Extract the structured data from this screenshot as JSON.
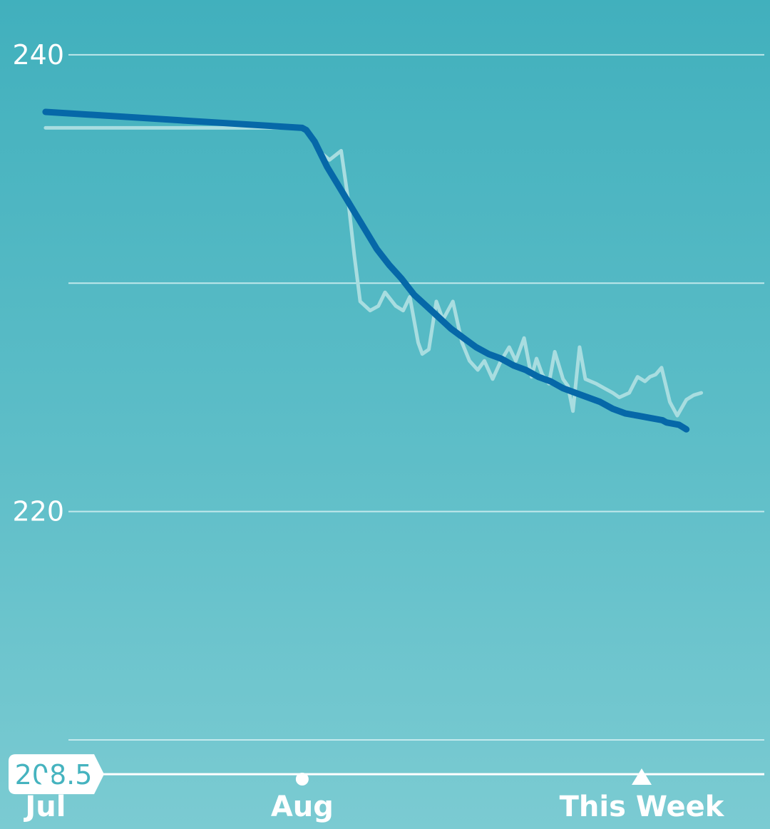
{
  "chart_data": {
    "type": "line",
    "ylim": [
      206.1,
      242.4
    ],
    "yticks": [
      {
        "value": 240,
        "label": "240"
      },
      {
        "value": 230,
        "label": ""
      },
      {
        "value": 220,
        "label": "220"
      },
      {
        "value": 210,
        "label": ""
      }
    ],
    "goal": {
      "value": 208.5,
      "label": "208.5"
    },
    "x_labels": [
      {
        "label": "Jul",
        "day": 0,
        "marker": "dot"
      },
      {
        "label": "Aug",
        "day": 31,
        "marker": "dot"
      },
      {
        "label": "This Week",
        "day": 72,
        "marker": "triangle"
      }
    ],
    "x_range": [
      -5.5,
      87.5
    ],
    "grid": true,
    "colors": {
      "trend": "#0668a8",
      "raw": "#a8dde0",
      "grid": "#d4f0f2",
      "goal_line": "#ffffff",
      "label_text": "#ffffff",
      "goal_badge_bg": "#ffffff",
      "goal_badge_text": "#45b3bf"
    },
    "series": [
      {
        "role": "raw",
        "x": [
          0,
          31,
          31.5,
          33,
          34.3,
          35.7,
          36.5,
          37.3,
          38,
          39.2,
          40.2,
          41,
          42.3,
          43.2,
          44,
          45,
          45.5,
          46.3,
          47.2,
          48,
          49.2,
          50.3,
          51.2,
          52.2,
          53,
          54,
          55,
          56,
          56.8,
          57.8,
          58.7,
          59.3,
          60,
          60.8,
          61.5,
          62.5,
          63.1,
          63.7,
          64.5,
          65.2,
          66.5,
          67.5,
          68.5,
          69.3,
          70.5,
          71.5,
          72.4,
          73,
          73.7,
          74.4,
          75.4,
          76.3,
          77.4,
          78.3,
          79.2
        ],
        "y": [
          236.8,
          236.8,
          236.7,
          235.8,
          235.4,
          235.8,
          233.8,
          231.2,
          229.2,
          228.8,
          229.0,
          229.6,
          229.0,
          228.8,
          229.4,
          227.4,
          226.9,
          227.1,
          229.2,
          228.4,
          229.2,
          227.4,
          226.6,
          226.2,
          226.6,
          225.8,
          226.6,
          227.2,
          226.6,
          227.6,
          225.9,
          226.7,
          226.0,
          225.6,
          227.0,
          225.8,
          225.5,
          224.4,
          227.2,
          225.8,
          225.6,
          225.4,
          225.2,
          225.0,
          225.2,
          225.9,
          225.7,
          225.9,
          226.0,
          226.3,
          224.8,
          224.2,
          224.9,
          225.1,
          225.2
        ]
      },
      {
        "role": "trend",
        "x": [
          0,
          31,
          31.5,
          32.5,
          34,
          35.5,
          37,
          38.5,
          40,
          41.5,
          43,
          44.5,
          46,
          47.5,
          49,
          50.5,
          52,
          53.5,
          55,
          56.5,
          58,
          59.5,
          61,
          62.5,
          64,
          65.5,
          67,
          68.5,
          70,
          71.5,
          73,
          74.5,
          75,
          76.5,
          77.4
        ],
        "y": [
          237.5,
          236.8,
          236.7,
          236.2,
          235.1,
          234.2,
          233.3,
          232.4,
          231.5,
          230.8,
          230.2,
          229.5,
          229.0,
          228.5,
          228.0,
          227.6,
          227.2,
          226.9,
          226.7,
          226.4,
          226.2,
          225.9,
          225.7,
          225.4,
          225.2,
          225.0,
          224.8,
          224.5,
          224.3,
          224.2,
          224.1,
          224.0,
          223.9,
          223.8,
          223.6
        ]
      }
    ]
  }
}
